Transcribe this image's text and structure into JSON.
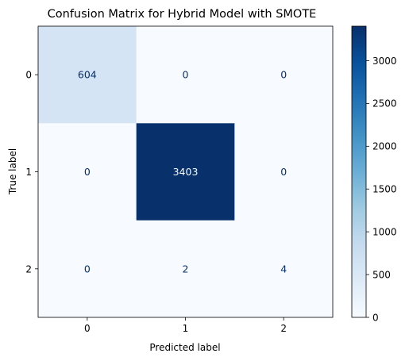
{
  "chart_data": {
    "type": "heatmap",
    "title": "Confusion Matrix for Hybrid Model with SMOTE",
    "xlabel": "Predicted label",
    "ylabel": "True label",
    "x_categories": [
      "0",
      "1",
      "2"
    ],
    "y_categories": [
      "0",
      "1",
      "2"
    ],
    "values": [
      [
        604,
        0,
        0
      ],
      [
        0,
        3403,
        0
      ],
      [
        0,
        2,
        4
      ]
    ],
    "colormap": "Blues",
    "color_range": [
      0,
      3403
    ],
    "colorbar_ticks": [
      0,
      500,
      1000,
      1500,
      2000,
      2500,
      3000
    ],
    "colorbar_tick_labels": [
      "0",
      "500",
      "1000",
      "1500",
      "2000",
      "2500",
      "3000"
    ],
    "colors": {
      "low": "#f7fbff",
      "high": "#08306b",
      "dark_text": "#08306b",
      "light_text": "#f7fbff"
    }
  }
}
